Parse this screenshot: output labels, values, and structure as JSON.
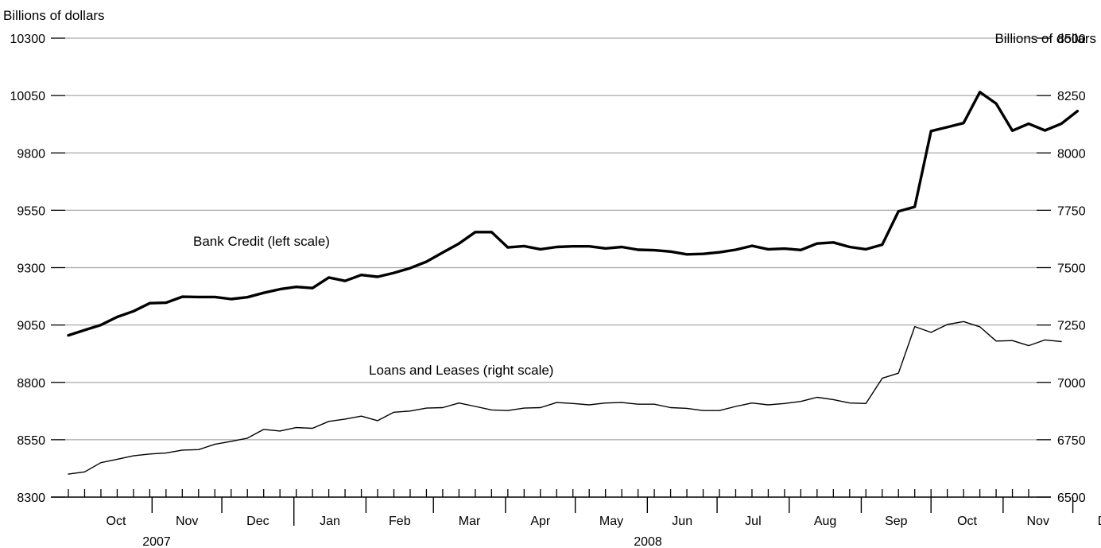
{
  "chart_data": {
    "type": "line",
    "left_axis": {
      "title": "Billions of dollars",
      "ylim": [
        8300,
        10300
      ],
      "ticks": [
        8300,
        8550,
        8800,
        9050,
        9300,
        9550,
        9800,
        10050,
        10300
      ],
      "tick_labels": [
        "8300",
        "8550",
        "8800",
        "9050",
        "9300",
        "9550",
        "9800",
        "10050",
        "10300"
      ]
    },
    "right_axis": {
      "title": "Billions of dollars",
      "ylim": [
        6500,
        8500
      ],
      "ticks": [
        6500,
        6750,
        7000,
        7250,
        7500,
        7750,
        8000,
        8250,
        8500
      ],
      "tick_labels": [
        "6500",
        "6750",
        "7000",
        "7250",
        "7500",
        "7750",
        "8000",
        "8250",
        "8500"
      ]
    },
    "grid": true,
    "months": [
      "Oct",
      "Nov",
      "Dec",
      "Jan",
      "Feb",
      "Mar",
      "Apr",
      "May",
      "Jun",
      "Jul",
      "Aug",
      "Sep",
      "Oct",
      "Nov",
      "Dec"
    ],
    "years": [
      "2007",
      "2008"
    ],
    "week_start": "2007-09-26",
    "series": [
      {
        "name": "Bank Credit (left scale)",
        "axis": "left",
        "stroke_color": "#000000",
        "values": [
          9005,
          9028,
          9050,
          9085,
          9110,
          9145,
          9147,
          9173,
          9172,
          9172,
          9163,
          9171,
          9190,
          9206,
          9216,
          9211,
          9257,
          9242,
          9268,
          9260,
          9277,
          9298,
          9326,
          9366,
          9405,
          9455,
          9455,
          9388,
          9394,
          9380,
          9390,
          9393,
          9393,
          9384,
          9390,
          9378,
          9376,
          9370,
          9358,
          9360,
          9367,
          9378,
          9395,
          9380,
          9383,
          9377,
          9405,
          9410,
          9390,
          9380,
          9400,
          9545,
          9565,
          9895,
          9912,
          9930,
          10065,
          10015,
          9897,
          9927,
          9898,
          9927,
          9982
        ]
      },
      {
        "name": "Loans and Leases (right scale)",
        "axis": "right",
        "stroke_color": "#000000",
        "values": [
          6600,
          6610,
          6650,
          6665,
          6680,
          6688,
          6692,
          6705,
          6707,
          6730,
          6743,
          6757,
          6795,
          6788,
          6803,
          6800,
          6830,
          6840,
          6853,
          6833,
          6870,
          6875,
          6888,
          6890,
          6910,
          6895,
          6880,
          6877,
          6888,
          6890,
          6912,
          6908,
          6902,
          6910,
          6912,
          6905,
          6905,
          6890,
          6887,
          6877,
          6877,
          6895,
          6910,
          6902,
          6908,
          6917,
          6935,
          6925,
          6910,
          6908,
          7018,
          7040,
          7243,
          7218,
          7252,
          7265,
          7242,
          7180,
          7182,
          7160,
          7185,
          7178
        ]
      }
    ],
    "annotations": [
      {
        "text": "Bank Credit (left scale)",
        "series": 0
      },
      {
        "text": "Loans and Leases (right scale)",
        "series": 1
      }
    ]
  }
}
